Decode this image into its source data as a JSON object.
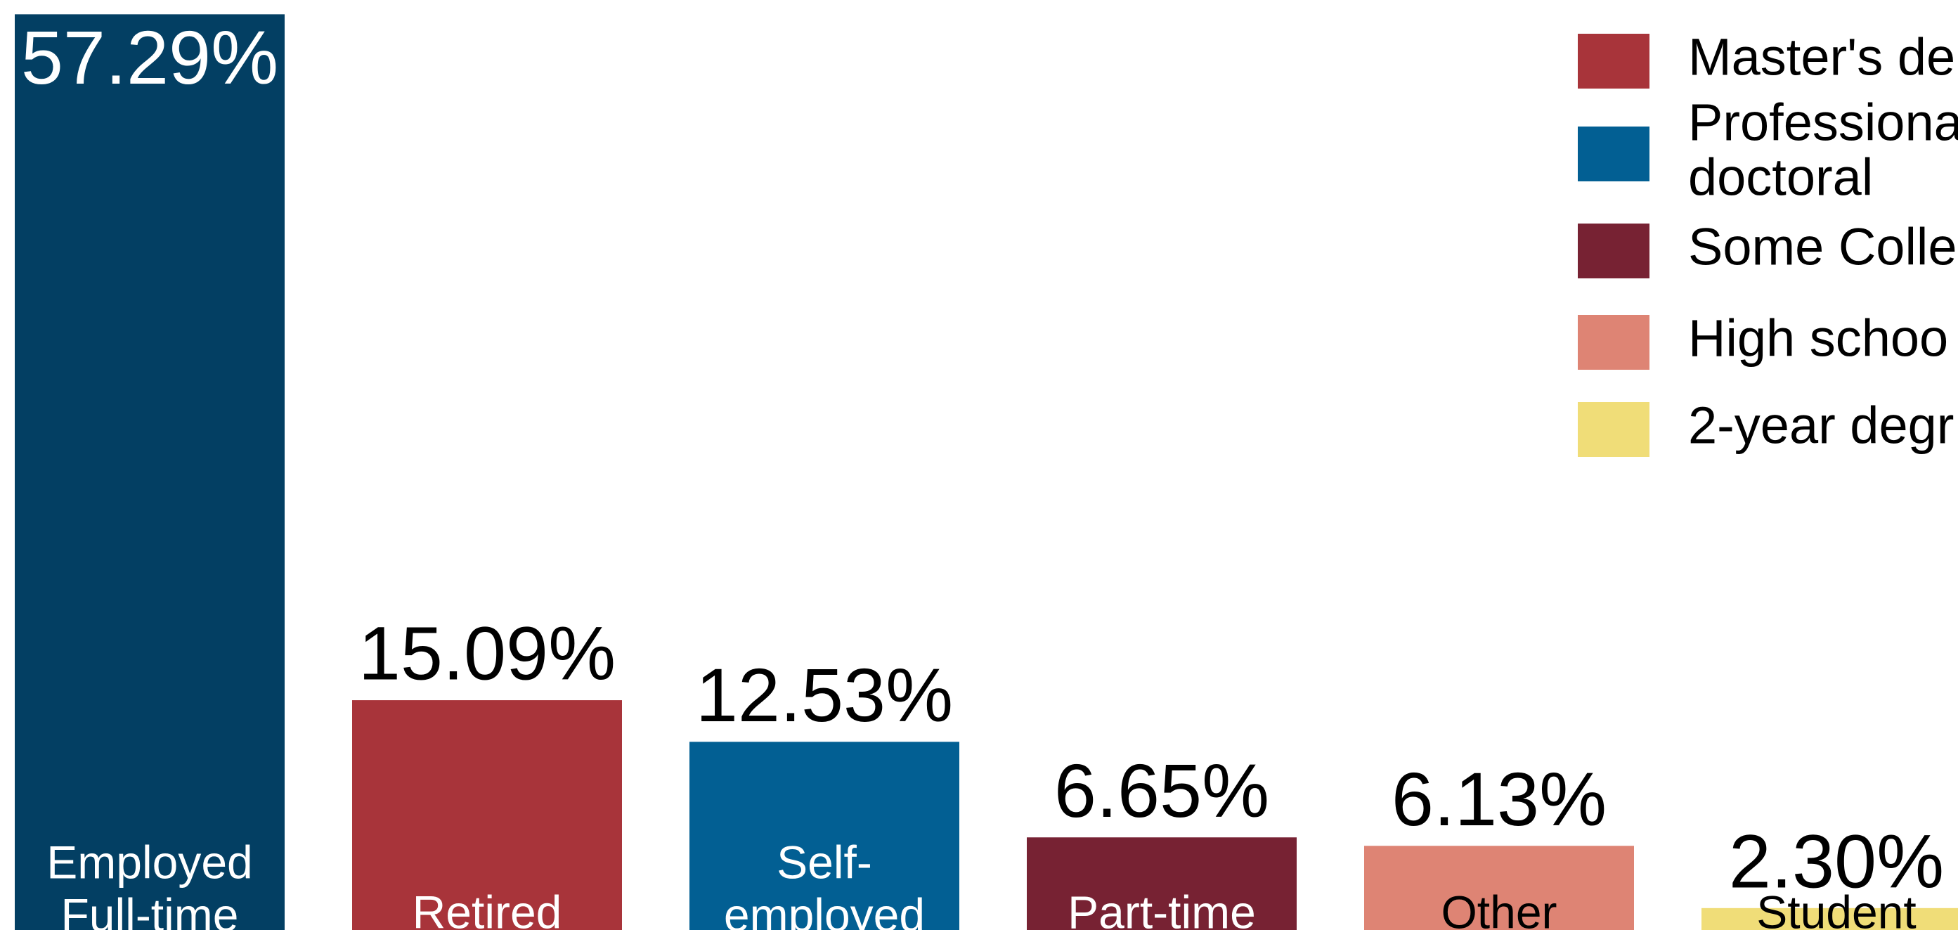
{
  "chart_data": {
    "type": "bar",
    "categories": [
      [
        "Employed",
        "Full-time"
      ],
      [
        "Retired"
      ],
      [
        "Self-",
        "employed"
      ],
      [
        "Part-time"
      ],
      [
        "Other"
      ],
      [
        "Student"
      ]
    ],
    "values": [
      57.29,
      15.09,
      12.53,
      6.65,
      6.13,
      2.3
    ],
    "value_labels": [
      "57.29%",
      "15.09%",
      "12.53%",
      "6.65%",
      "6.13%",
      "2.30%"
    ],
    "colors": [
      "#033f63",
      "#a8343a",
      "#025f93",
      "#772233",
      "#de8474",
      "#f0dd78"
    ],
    "label_colors": [
      "#ffffff",
      "#ffffff",
      "#ffffff",
      "#ffffff",
      "#000000",
      "#000000"
    ],
    "ylim": [
      0,
      58.17
    ],
    "legend": [
      {
        "lines": [
          "Master's de"
        ],
        "color": "#a8343a"
      },
      {
        "lines": [
          "Professiona",
          "doctoral"
        ],
        "color": "#025f93"
      },
      {
        "lines": [
          "Some Colle"
        ],
        "color": "#772233"
      },
      {
        "lines": [
          "High schoo"
        ],
        "color": "#de8474"
      },
      {
        "lines": [
          "2-year degr"
        ],
        "color": "#f0dd78"
      }
    ]
  }
}
